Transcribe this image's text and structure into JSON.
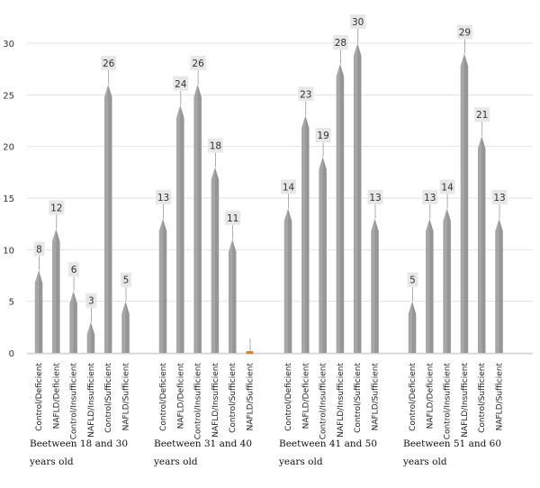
{
  "chart_data": {
    "type": "bar",
    "ylim": [
      0,
      30
    ],
    "yticks": [
      0,
      5,
      10,
      15,
      20,
      25,
      30
    ],
    "grid": true,
    "bar_color": "#a6a6a6",
    "zero_bar_color": "#d9822b",
    "label_box_color": "#e7e7e7",
    "categories": [
      "Control/Deficient",
      "NAFLD/Deficient",
      "Control/Insufficient",
      "NAFLD/Insufficient",
      "Control/Sufficient",
      "NAFLD/Sufficient"
    ],
    "groups": [
      {
        "label_lines": [
          "Beetween 18 and 30",
          "years old"
        ],
        "values": [
          8,
          12,
          6,
          3,
          26,
          5
        ]
      },
      {
        "label_lines": [
          "Beetween 31 and 40",
          "years old"
        ],
        "values": [
          13,
          24,
          26,
          18,
          11,
          0
        ]
      },
      {
        "label_lines": [
          "Beetween 41 and 50",
          "years old"
        ],
        "values": [
          14,
          23,
          19,
          28,
          30,
          13
        ]
      },
      {
        "label_lines": [
          "Beetween 51 and 60",
          "years old"
        ],
        "values": [
          5,
          13,
          14,
          29,
          21,
          13
        ]
      }
    ]
  }
}
